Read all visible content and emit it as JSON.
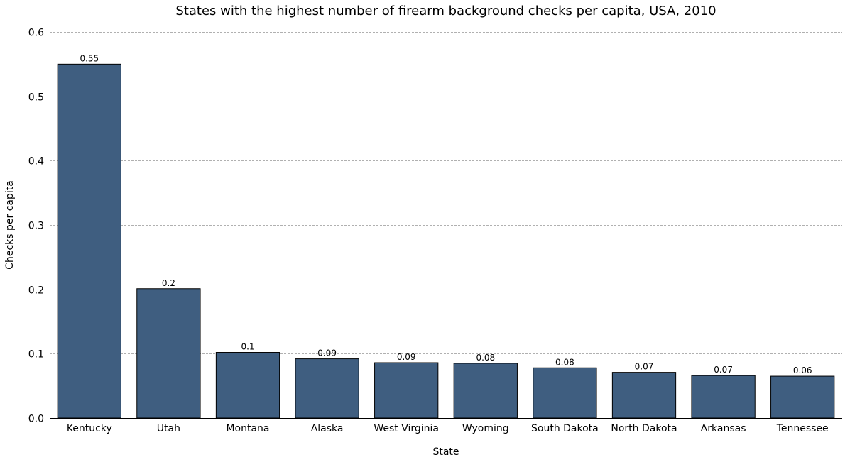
{
  "chart_data": {
    "type": "bar",
    "title": "States with the highest number of firearm background checks per capita, USA, 2010",
    "xlabel": "State",
    "ylabel": "Checks per capita",
    "categories": [
      "Kentucky",
      "Utah",
      "Montana",
      "Alaska",
      "West Virginia",
      "Wyoming",
      "South Dakota",
      "North Dakota",
      "Arkansas",
      "Tennessee"
    ],
    "values": [
      0.55,
      0.201,
      0.102,
      0.092,
      0.086,
      0.085,
      0.078,
      0.071,
      0.066,
      0.065
    ],
    "data_labels": [
      "0.55",
      "0.2",
      "0.1",
      "0.09",
      "0.09",
      "0.08",
      "0.08",
      "0.07",
      "0.07",
      "0.06"
    ],
    "ylim": [
      0,
      0.6
    ],
    "yticks": [
      "0.0",
      "0.1",
      "0.2",
      "0.3",
      "0.4",
      "0.5",
      "0.6"
    ],
    "bar_color": "#3f5e80",
    "grid": true
  }
}
